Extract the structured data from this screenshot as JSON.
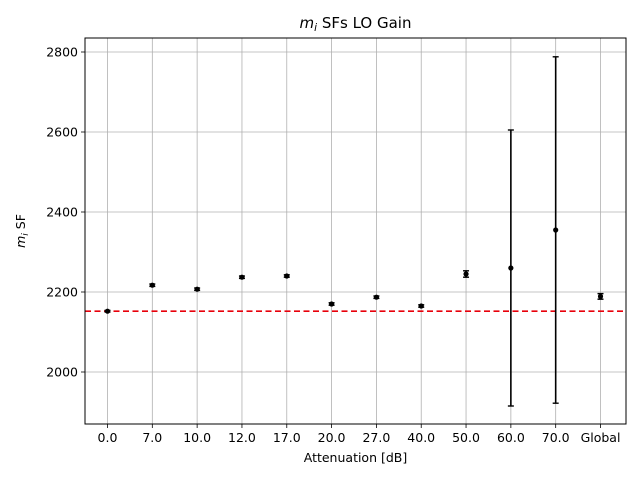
{
  "chart_data": {
    "type": "scatter",
    "title_var": "m",
    "title_sub": "i",
    "title_rest": " SFs LO Gain",
    "xlabel": "Attenuation [dB]",
    "ylabel_var": "m",
    "ylabel_sub": "i",
    "ylabel_rest": " SF",
    "categories": [
      "0.0",
      "7.0",
      "10.0",
      "12.0",
      "17.0",
      "20.0",
      "27.0",
      "40.0",
      "50.0",
      "60.0",
      "70.0",
      "Global"
    ],
    "values": [
      2152,
      2217,
      2207,
      2237,
      2240,
      2170,
      2187,
      2165,
      2245,
      2260,
      2355,
      2189
    ],
    "errors": [
      2,
      3,
      3,
      3,
      3,
      3,
      3,
      3,
      8,
      345,
      433,
      7
    ],
    "reference_line": 2152,
    "ylim": [
      1870,
      2835
    ],
    "yticks": [
      2000,
      2200,
      2400,
      2600,
      2800
    ],
    "grid": true,
    "marker_color": "#000000",
    "reference_color": "#e8000b"
  }
}
